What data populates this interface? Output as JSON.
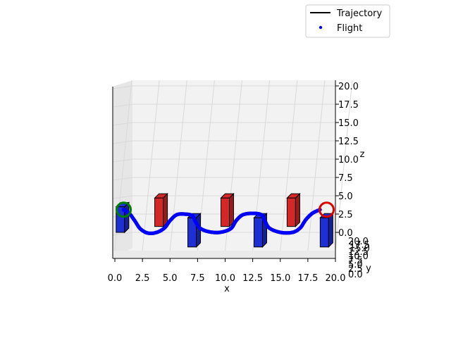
{
  "chart_data": {
    "type": "scatter",
    "projection": "3d",
    "xlabel": "x",
    "ylabel": "y",
    "zlabel": "z",
    "xlim": [
      0,
      20
    ],
    "ylim": [
      0,
      20
    ],
    "zlim": [
      0,
      20
    ],
    "x_ticks": [
      "0.0",
      "2.5",
      "5.0",
      "7.5",
      "10.0",
      "12.5",
      "15.0",
      "17.5",
      "20.0"
    ],
    "z_ticks": [
      "0.0",
      "2.5",
      "5.0",
      "7.5",
      "10.0",
      "12.5",
      "15.0",
      "17.5",
      "20.0"
    ],
    "y_ticks": [
      "0.0",
      "2.5",
      "5.0",
      "7.5",
      "10.0",
      "12.5",
      "15.0",
      "17.5",
      "20.0"
    ],
    "grid": true,
    "legend": {
      "location": "upper right",
      "entries": [
        "Trajectory",
        "Flight"
      ]
    },
    "series": [
      {
        "name": "Trajectory",
        "kind": "line",
        "color": "#000000"
      },
      {
        "name": "Flight",
        "kind": "scatter",
        "color": "#0000ff"
      }
    ],
    "trajectory_points": [
      {
        "x": 0.8,
        "z": 3.1
      },
      {
        "x": 1.3,
        "z": 2.6
      },
      {
        "x": 1.8,
        "z": 1.6
      },
      {
        "x": 2.3,
        "z": 0.5
      },
      {
        "x": 3.0,
        "z": -0.1
      },
      {
        "x": 3.8,
        "z": 0.0
      },
      {
        "x": 4.5,
        "z": 0.6
      },
      {
        "x": 5.0,
        "z": 1.6
      },
      {
        "x": 5.6,
        "z": 2.4
      },
      {
        "x": 6.3,
        "z": 2.5
      },
      {
        "x": 7.0,
        "z": 2.3
      },
      {
        "x": 7.3,
        "z": 1.5
      },
      {
        "x": 7.7,
        "z": 0.6
      },
      {
        "x": 8.5,
        "z": 0.1
      },
      {
        "x": 9.5,
        "z": 0.0
      },
      {
        "x": 10.5,
        "z": 0.5
      },
      {
        "x": 11.0,
        "z": 1.6
      },
      {
        "x": 11.6,
        "z": 2.4
      },
      {
        "x": 12.5,
        "z": 2.6
      },
      {
        "x": 13.3,
        "z": 2.4
      },
      {
        "x": 13.6,
        "z": 1.6
      },
      {
        "x": 14.0,
        "z": 0.6
      },
      {
        "x": 15.0,
        "z": 0.0
      },
      {
        "x": 16.1,
        "z": 0.0
      },
      {
        "x": 16.8,
        "z": 0.6
      },
      {
        "x": 17.3,
        "z": 1.7
      },
      {
        "x": 17.9,
        "z": 2.6
      },
      {
        "x": 18.6,
        "z": 3.1
      }
    ],
    "start_marker": {
      "x": 0.8,
      "z": 3.1,
      "color": "#007f00"
    },
    "goal_marker": {
      "x": 19.2,
      "z": 3.1,
      "color": "#dd0000"
    },
    "obstacles": [
      {
        "x": 0.5,
        "color": "#1f2fd6",
        "z_low": 0.0,
        "z_high": 3.5
      },
      {
        "x": 4.0,
        "color": "#d62728",
        "z_low": 0.8,
        "z_high": 4.7
      },
      {
        "x": 7.0,
        "color": "#1f2fd6",
        "z_low": -2.0,
        "z_high": 2.0
      },
      {
        "x": 10.0,
        "color": "#d62728",
        "z_low": 0.8,
        "z_high": 4.7
      },
      {
        "x": 13.0,
        "color": "#1f2fd6",
        "z_low": -2.0,
        "z_high": 2.0
      },
      {
        "x": 16.0,
        "color": "#d62728",
        "z_low": 0.8,
        "z_high": 4.7
      },
      {
        "x": 19.0,
        "color": "#1f2fd6",
        "z_low": -2.0,
        "z_high": 2.0
      }
    ]
  }
}
